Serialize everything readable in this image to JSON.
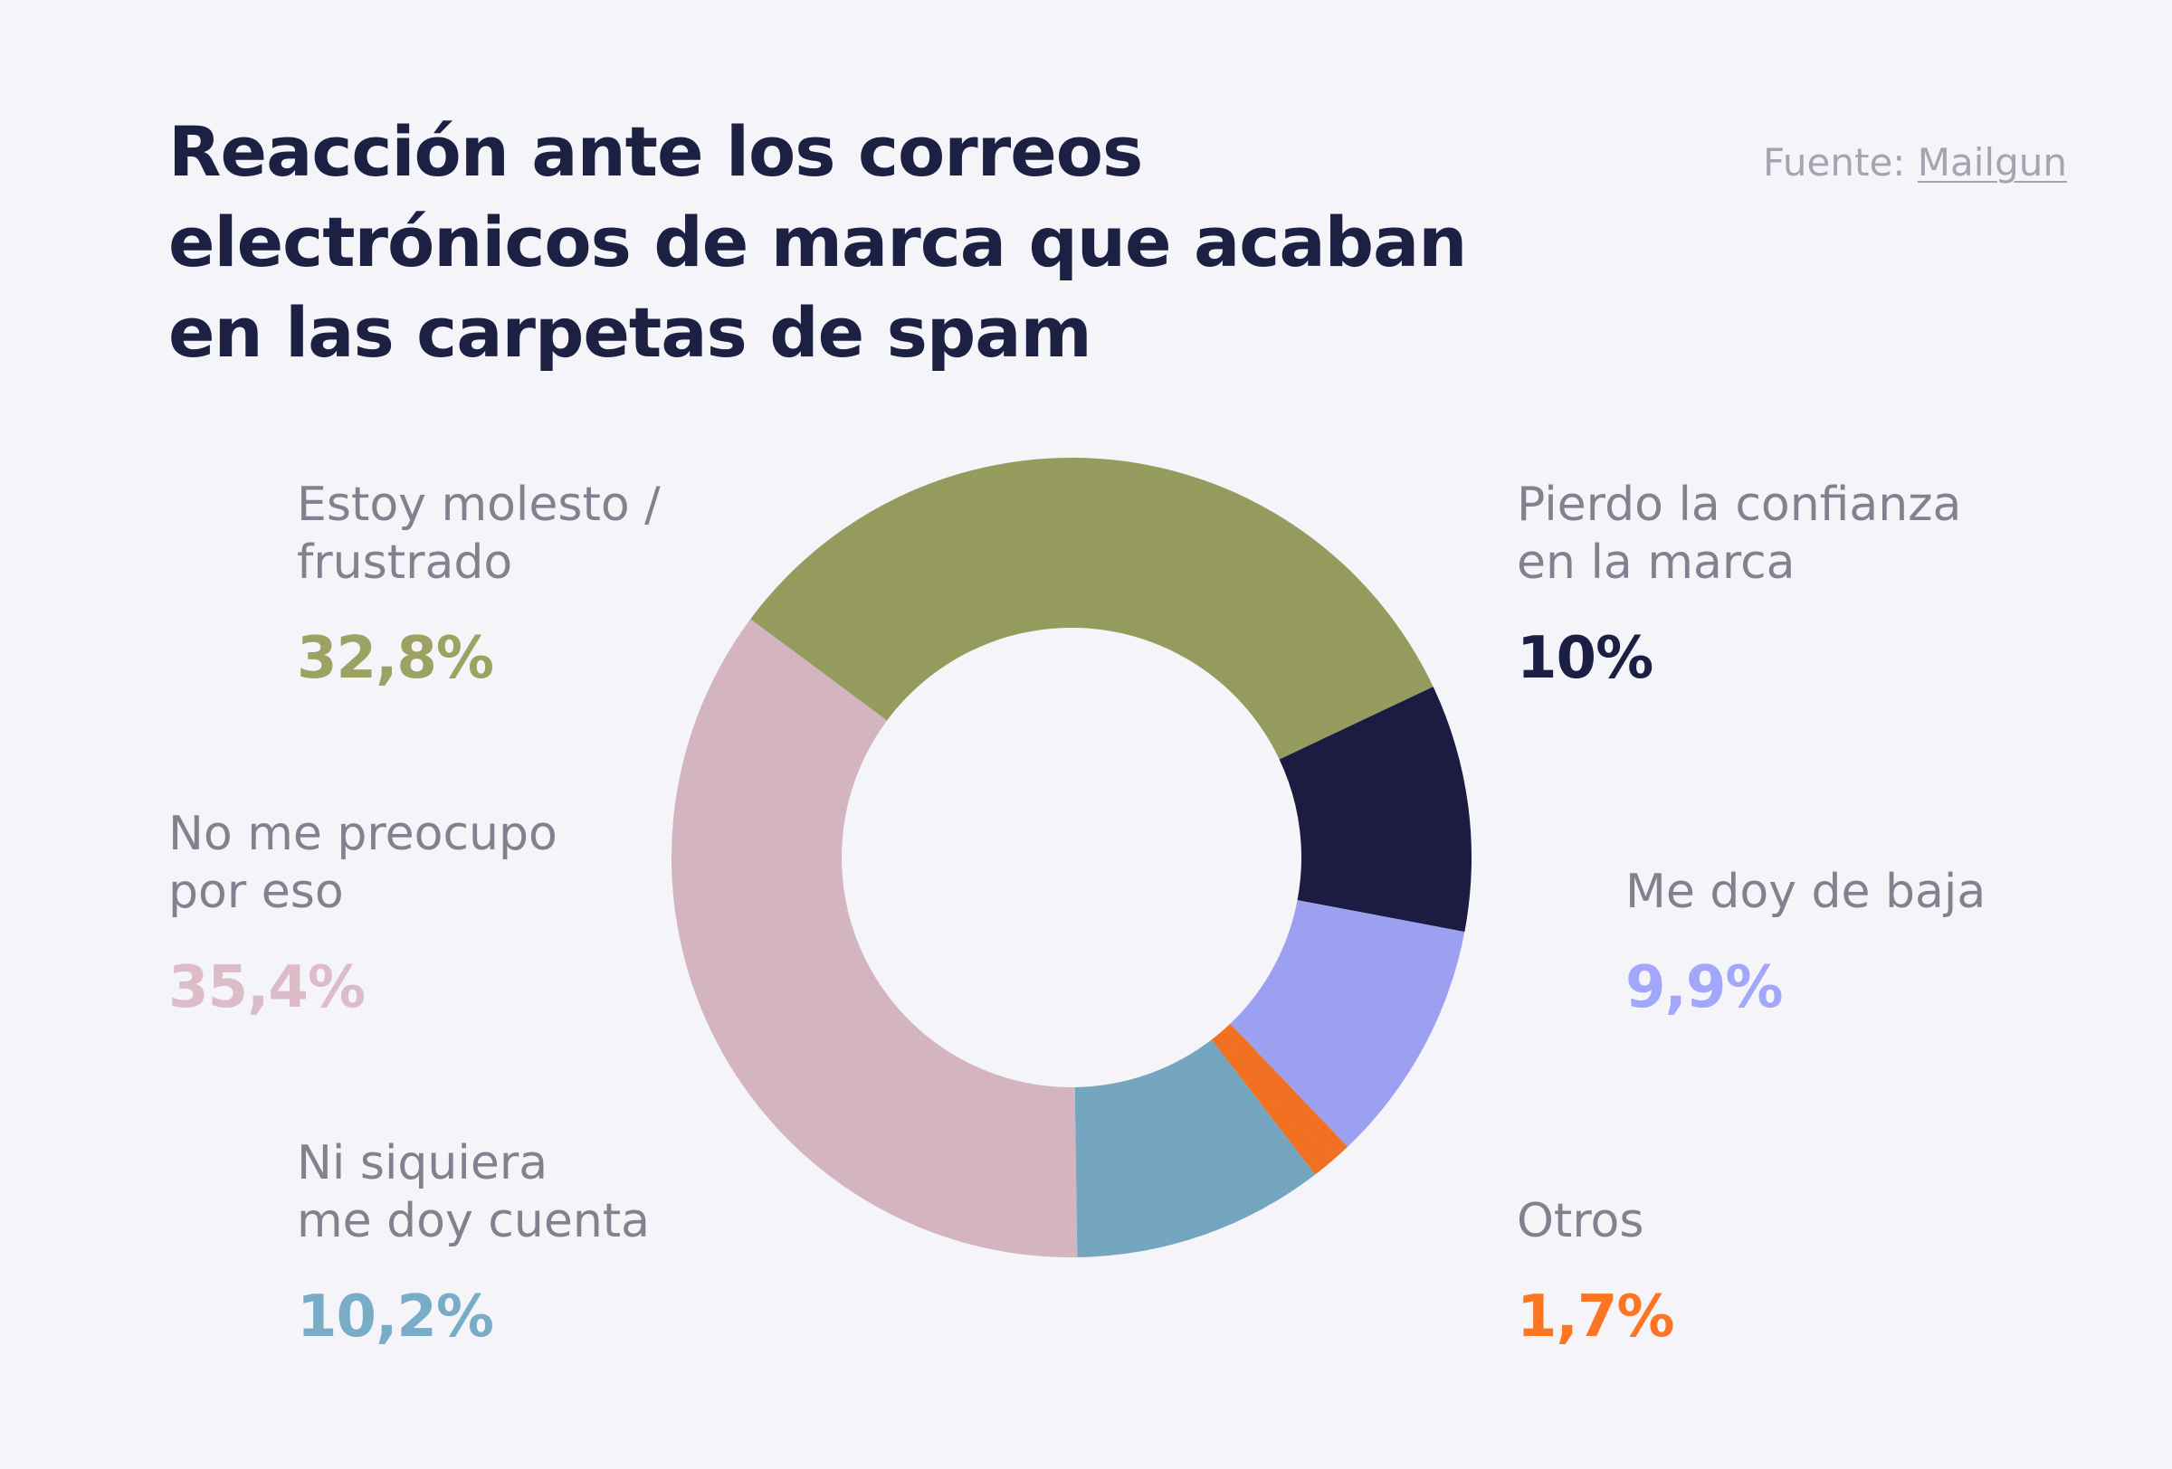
{
  "title_lines": [
    "Reacción ante los correos",
    "electrónicos de marca que acaban",
    "en las carpetas de spam"
  ],
  "source": {
    "prefix": "Fuente: ",
    "link_text": "Mailgun"
  },
  "chart_data": {
    "type": "pie",
    "donut": true,
    "legend_placement": "around",
    "slices": [
      {
        "label": "Pierdo la confianza\nen la marca",
        "value": 10.0,
        "display": "10%",
        "color": "#1c1f45"
      },
      {
        "label": "Me doy de baja",
        "value": 9.9,
        "display": "9,9%",
        "color": "#a3a7fb"
      },
      {
        "label": "Otros",
        "value": 1.7,
        "display": "1,7%",
        "color": "#fb7523"
      },
      {
        "label": "Ni siquiera\nme doy cuenta",
        "value": 10.2,
        "display": "10,2%",
        "color": "#79adc7"
      },
      {
        "label": "No me preocupo\npor eso",
        "value": 35.4,
        "display": "35,4%",
        "color": "#dcbcc8"
      },
      {
        "label": "Estoy molesto /\nfrustrado",
        "value": 32.8,
        "display": "32,8%",
        "color": "#9ba262"
      }
    ]
  }
}
